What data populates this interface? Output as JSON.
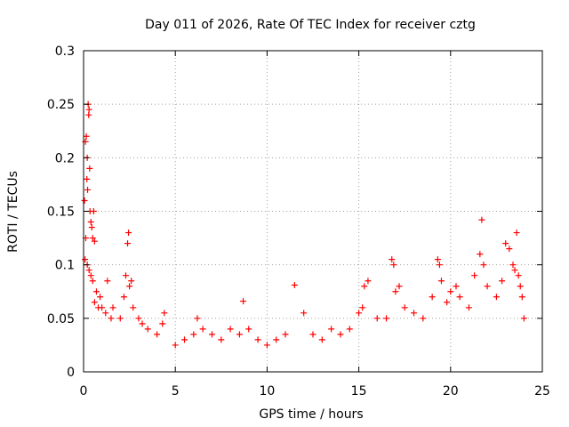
{
  "chart_data": {
    "type": "scatter",
    "title": "Day 011 of 2026, Rate Of TEC Index for receiver cztg",
    "xlabel": "GPS time / hours",
    "ylabel": "ROTI / TECUs",
    "xlim": [
      0,
      25
    ],
    "ylim": [
      0,
      0.3
    ],
    "x_ticks": [
      "0",
      "5",
      "10",
      "15",
      "20",
      "25"
    ],
    "y_ticks": [
      "0",
      "0.05",
      "0.1",
      "0.15",
      "0.2",
      "0.25",
      "0.3"
    ],
    "grid": true,
    "marker": "+",
    "marker_color": "#ff0000",
    "series": [
      {
        "points": [
          [
            0.05,
            0.16
          ],
          [
            0.1,
            0.215
          ],
          [
            0.15,
            0.22
          ],
          [
            0.18,
            0.18
          ],
          [
            0.2,
            0.2
          ],
          [
            0.22,
            0.17
          ],
          [
            0.25,
            0.25
          ],
          [
            0.28,
            0.24
          ],
          [
            0.3,
            0.245
          ],
          [
            0.33,
            0.19
          ],
          [
            0.35,
            0.15
          ],
          [
            0.4,
            0.14
          ],
          [
            0.45,
            0.135
          ],
          [
            0.5,
            0.125
          ],
          [
            0.55,
            0.15
          ],
          [
            0.6,
            0.122
          ],
          [
            0.12,
            0.125
          ],
          [
            0.08,
            0.105
          ],
          [
            0.2,
            0.1
          ],
          [
            0.3,
            0.095
          ],
          [
            0.4,
            0.09
          ],
          [
            0.5,
            0.085
          ],
          [
            0.7,
            0.075
          ],
          [
            0.9,
            0.07
          ],
          [
            1.0,
            0.06
          ],
          [
            1.2,
            0.055
          ],
          [
            1.5,
            0.05
          ],
          [
            0.6,
            0.065
          ],
          [
            0.8,
            0.06
          ],
          [
            1.3,
            0.085
          ],
          [
            1.6,
            0.06
          ],
          [
            2.0,
            0.05
          ],
          [
            2.2,
            0.07
          ],
          [
            2.3,
            0.09
          ],
          [
            2.4,
            0.12
          ],
          [
            2.45,
            0.13
          ],
          [
            2.5,
            0.08
          ],
          [
            2.6,
            0.085
          ],
          [
            2.7,
            0.06
          ],
          [
            3.0,
            0.05
          ],
          [
            3.2,
            0.045
          ],
          [
            3.5,
            0.04
          ],
          [
            4.0,
            0.035
          ],
          [
            4.3,
            0.045
          ],
          [
            4.4,
            0.055
          ],
          [
            5.0,
            0.025
          ],
          [
            5.5,
            0.03
          ],
          [
            6.0,
            0.035
          ],
          [
            6.2,
            0.05
          ],
          [
            6.5,
            0.04
          ],
          [
            7.0,
            0.035
          ],
          [
            7.5,
            0.03
          ],
          [
            8.0,
            0.04
          ],
          [
            8.5,
            0.035
          ],
          [
            8.7,
            0.066
          ],
          [
            9.0,
            0.04
          ],
          [
            9.5,
            0.03
          ],
          [
            10.0,
            0.025
          ],
          [
            10.5,
            0.03
          ],
          [
            11.0,
            0.035
          ],
          [
            11.5,
            0.081
          ],
          [
            12.0,
            0.055
          ],
          [
            12.5,
            0.035
          ],
          [
            13.0,
            0.03
          ],
          [
            13.5,
            0.04
          ],
          [
            14.0,
            0.035
          ],
          [
            14.5,
            0.04
          ],
          [
            15.0,
            0.055
          ],
          [
            15.2,
            0.06
          ],
          [
            15.5,
            0.085
          ],
          [
            15.3,
            0.08
          ],
          [
            16.0,
            0.05
          ],
          [
            16.5,
            0.05
          ],
          [
            16.8,
            0.105
          ],
          [
            16.9,
            0.1
          ],
          [
            17.0,
            0.075
          ],
          [
            17.2,
            0.08
          ],
          [
            17.5,
            0.06
          ],
          [
            18.0,
            0.055
          ],
          [
            18.5,
            0.05
          ],
          [
            19.0,
            0.07
          ],
          [
            19.3,
            0.105
          ],
          [
            19.4,
            0.1
          ],
          [
            19.5,
            0.085
          ],
          [
            19.8,
            0.065
          ],
          [
            20.0,
            0.075
          ],
          [
            20.3,
            0.08
          ],
          [
            20.5,
            0.07
          ],
          [
            21.0,
            0.06
          ],
          [
            21.3,
            0.09
          ],
          [
            21.6,
            0.11
          ],
          [
            21.7,
            0.142
          ],
          [
            21.8,
            0.1
          ],
          [
            22.0,
            0.08
          ],
          [
            22.5,
            0.07
          ],
          [
            22.8,
            0.085
          ],
          [
            23.0,
            0.12
          ],
          [
            23.2,
            0.115
          ],
          [
            23.4,
            0.1
          ],
          [
            23.5,
            0.095
          ],
          [
            23.6,
            0.13
          ],
          [
            23.7,
            0.09
          ],
          [
            23.8,
            0.08
          ],
          [
            23.9,
            0.07
          ],
          [
            24.0,
            0.05
          ]
        ]
      }
    ]
  }
}
